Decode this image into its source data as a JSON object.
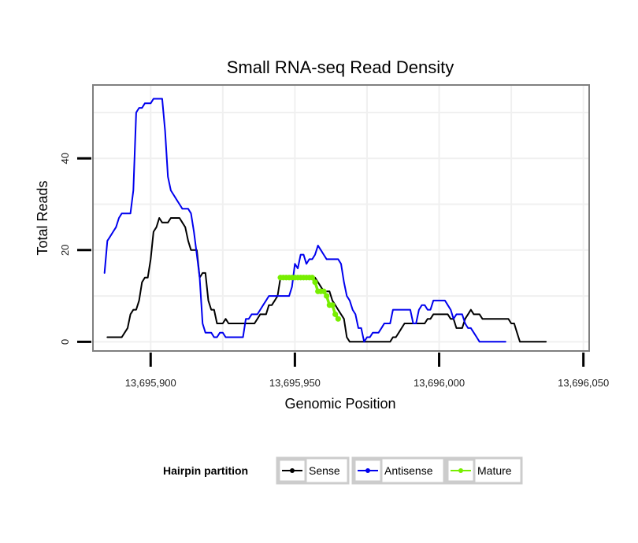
{
  "chart_data": {
    "type": "line",
    "title": "Small RNA-seq Read Density",
    "xlabel": "Genomic Position",
    "ylabel": "Total Reads",
    "xlim": [
      13695880,
      13696052
    ],
    "ylim": [
      -2,
      56
    ],
    "x_ticks": [
      {
        "value": 13695900,
        "label": "13,695,900"
      },
      {
        "value": 13695950,
        "label": "13,695,950"
      },
      {
        "value": 13696000,
        "label": "13,696,000"
      },
      {
        "value": 13696050,
        "label": "13,696,050"
      }
    ],
    "y_ticks": [
      {
        "value": 0,
        "label": "0"
      },
      {
        "value": 20,
        "label": "20"
      },
      {
        "value": 40,
        "label": "40"
      }
    ],
    "grid": true,
    "legend": {
      "title": "Hairpin partition",
      "position": "bottom",
      "entries": [
        "Sense",
        "Antisense",
        "Mature"
      ]
    },
    "series": [
      {
        "name": "Sense",
        "color": "#000000",
        "points": [
          [
            13695885,
            1
          ],
          [
            13695890,
            1
          ],
          [
            13695891,
            2
          ],
          [
            13695892,
            3
          ],
          [
            13695893,
            6
          ],
          [
            13695894,
            7
          ],
          [
            13695895,
            7
          ],
          [
            13695896,
            9
          ],
          [
            13695897,
            13
          ],
          [
            13695898,
            14
          ],
          [
            13695899,
            14
          ],
          [
            13695900,
            18
          ],
          [
            13695901,
            24
          ],
          [
            13695902,
            25
          ],
          [
            13695903,
            27
          ],
          [
            13695904,
            26
          ],
          [
            13695905,
            26
          ],
          [
            13695906,
            26
          ],
          [
            13695907,
            27
          ],
          [
            13695910,
            27
          ],
          [
            13695911,
            26
          ],
          [
            13695912,
            25
          ],
          [
            13695913,
            22
          ],
          [
            13695914,
            20
          ],
          [
            13695915,
            20
          ],
          [
            13695916,
            20
          ],
          [
            13695917,
            14
          ],
          [
            13695918,
            15
          ],
          [
            13695919,
            15
          ],
          [
            13695920,
            9
          ],
          [
            13695921,
            7
          ],
          [
            13695922,
            7
          ],
          [
            13695923,
            4
          ],
          [
            13695925,
            4
          ],
          [
            13695926,
            5
          ],
          [
            13695927,
            4
          ],
          [
            13695936,
            4
          ],
          [
            13695937,
            5
          ],
          [
            13695938,
            6
          ],
          [
            13695940,
            6
          ],
          [
            13695941,
            8
          ],
          [
            13695942,
            8
          ],
          [
            13695943,
            9
          ],
          [
            13695944,
            10
          ],
          [
            13695945,
            14
          ],
          [
            13695956,
            14
          ],
          [
            13695957,
            14
          ],
          [
            13695958,
            13
          ],
          [
            13695959,
            12
          ],
          [
            13695960,
            11
          ],
          [
            13695962,
            11
          ],
          [
            13695963,
            9
          ],
          [
            13695964,
            8
          ],
          [
            13695965,
            7
          ],
          [
            13695966,
            6
          ],
          [
            13695967,
            5
          ],
          [
            13695968,
            1
          ],
          [
            13695969,
            0
          ],
          [
            13695983,
            0
          ],
          [
            13695984,
            1
          ],
          [
            13695985,
            1
          ],
          [
            13695986,
            2
          ],
          [
            13695987,
            3
          ],
          [
            13695988,
            4
          ],
          [
            13695995,
            4
          ],
          [
            13695996,
            5
          ],
          [
            13695997,
            5
          ],
          [
            13695998,
            6
          ],
          [
            13696003,
            6
          ],
          [
            13696004,
            5
          ],
          [
            13696005,
            5
          ],
          [
            13696006,
            3
          ],
          [
            13696008,
            3
          ],
          [
            13696009,
            5
          ],
          [
            13696010,
            6
          ],
          [
            13696011,
            7
          ],
          [
            13696012,
            6
          ],
          [
            13696014,
            6
          ],
          [
            13696015,
            5
          ],
          [
            13696024,
            5
          ],
          [
            13696025,
            4
          ],
          [
            13696026,
            4
          ],
          [
            13696027,
            2
          ],
          [
            13696028,
            0
          ],
          [
            13696037,
            0
          ]
        ]
      },
      {
        "name": "Antisense",
        "color": "#0000ee",
        "points": [
          [
            13695884,
            15
          ],
          [
            13695885,
            22
          ],
          [
            13695886,
            23
          ],
          [
            13695887,
            24
          ],
          [
            13695888,
            25
          ],
          [
            13695889,
            27
          ],
          [
            13695890,
            28
          ],
          [
            13695893,
            28
          ],
          [
            13695894,
            33
          ],
          [
            13695895,
            50
          ],
          [
            13695896,
            51
          ],
          [
            13695897,
            51
          ],
          [
            13695898,
            52
          ],
          [
            13695899,
            52
          ],
          [
            13695900,
            52
          ],
          [
            13695901,
            53
          ],
          [
            13695904,
            53
          ],
          [
            13695905,
            46
          ],
          [
            13695906,
            36
          ],
          [
            13695907,
            33
          ],
          [
            13695908,
            32
          ],
          [
            13695909,
            31
          ],
          [
            13695910,
            30
          ],
          [
            13695911,
            29
          ],
          [
            13695913,
            29
          ],
          [
            13695914,
            28
          ],
          [
            13695915,
            24
          ],
          [
            13695916,
            19
          ],
          [
            13695917,
            14
          ],
          [
            13695918,
            4
          ],
          [
            13695919,
            2
          ],
          [
            13695921,
            2
          ],
          [
            13695922,
            1
          ],
          [
            13695923,
            1
          ],
          [
            13695924,
            2
          ],
          [
            13695925,
            2
          ],
          [
            13695926,
            1
          ],
          [
            13695932,
            1
          ],
          [
            13695933,
            5
          ],
          [
            13695934,
            5
          ],
          [
            13695935,
            6
          ],
          [
            13695937,
            6
          ],
          [
            13695938,
            7
          ],
          [
            13695939,
            8
          ],
          [
            13695940,
            9
          ],
          [
            13695941,
            10
          ],
          [
            13695948,
            10
          ],
          [
            13695949,
            12
          ],
          [
            13695950,
            17
          ],
          [
            13695951,
            16
          ],
          [
            13695952,
            19
          ],
          [
            13695953,
            19
          ],
          [
            13695954,
            17
          ],
          [
            13695955,
            18
          ],
          [
            13695956,
            18
          ],
          [
            13695957,
            19
          ],
          [
            13695958,
            21
          ],
          [
            13695959,
            20
          ],
          [
            13695960,
            19
          ],
          [
            13695961,
            18
          ],
          [
            13695965,
            18
          ],
          [
            13695966,
            17
          ],
          [
            13695967,
            13
          ],
          [
            13695968,
            10
          ],
          [
            13695969,
            9
          ],
          [
            13695970,
            7
          ],
          [
            13695971,
            6
          ],
          [
            13695972,
            3
          ],
          [
            13695973,
            3
          ],
          [
            13695974,
            0
          ],
          [
            13695975,
            1
          ],
          [
            13695976,
            1
          ],
          [
            13695977,
            2
          ],
          [
            13695979,
            2
          ],
          [
            13695980,
            3
          ],
          [
            13695981,
            4
          ],
          [
            13695983,
            4
          ],
          [
            13695984,
            7
          ],
          [
            13695990,
            7
          ],
          [
            13695991,
            4
          ],
          [
            13695992,
            4
          ],
          [
            13695993,
            7
          ],
          [
            13695994,
            8
          ],
          [
            13695995,
            8
          ],
          [
            13695996,
            7
          ],
          [
            13695997,
            7
          ],
          [
            13695998,
            9
          ],
          [
            13696002,
            9
          ],
          [
            13696003,
            8
          ],
          [
            13696004,
            7
          ],
          [
            13696005,
            5
          ],
          [
            13696006,
            6
          ],
          [
            13696007,
            6
          ],
          [
            13696008,
            6
          ],
          [
            13696009,
            4
          ],
          [
            13696010,
            3
          ],
          [
            13696011,
            3
          ],
          [
            13696012,
            2
          ],
          [
            13696013,
            1
          ],
          [
            13696014,
            0
          ],
          [
            13696023,
            0
          ]
        ]
      },
      {
        "name": "Mature",
        "color": "#77ee00",
        "points": [
          [
            13695945,
            14
          ],
          [
            13695946,
            14
          ],
          [
            13695947,
            14
          ],
          [
            13695948,
            14
          ],
          [
            13695949,
            14
          ],
          [
            13695950,
            14
          ],
          [
            13695951,
            14
          ],
          [
            13695952,
            14
          ],
          [
            13695953,
            14
          ],
          [
            13695954,
            14
          ],
          [
            13695955,
            14
          ],
          [
            13695956,
            14
          ],
          [
            13695957,
            13
          ],
          [
            13695958,
            11
          ],
          [
            13695959,
            11
          ],
          [
            13695960,
            11
          ],
          [
            13695961,
            10
          ],
          [
            13695962,
            8
          ],
          [
            13695963,
            8
          ],
          [
            13695964,
            6
          ],
          [
            13695965,
            5
          ]
        ]
      }
    ]
  }
}
